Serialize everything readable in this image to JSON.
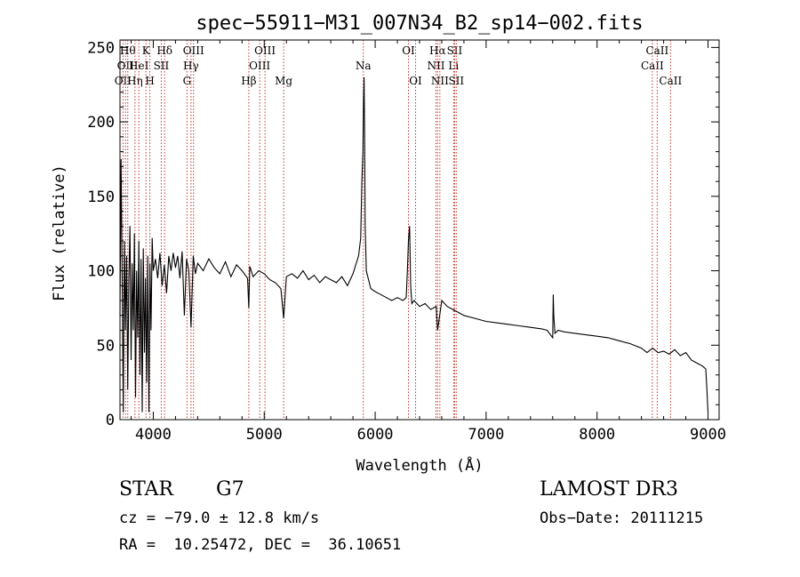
{
  "chart_data": {
    "type": "line",
    "title": "spec−55911−M31_007N34_B2_sp14−002.fits",
    "xlabel": "Wavelength (Å)",
    "ylabel": "Flux (relative)",
    "xlim": [
      3700,
      9100
    ],
    "ylim": [
      0,
      255
    ],
    "xticks": [
      4000,
      5000,
      6000,
      7000,
      8000,
      9000
    ],
    "yticks": [
      0,
      50,
      100,
      150,
      200,
      250
    ],
    "series": [
      {
        "name": "spectrum",
        "x": [
          3700,
          3710,
          3720,
          3730,
          3740,
          3750,
          3760,
          3770,
          3780,
          3790,
          3800,
          3810,
          3820,
          3830,
          3840,
          3850,
          3860,
          3870,
          3880,
          3890,
          3900,
          3910,
          3920,
          3930,
          3940,
          3950,
          3960,
          3970,
          3980,
          3990,
          4000,
          4020,
          4040,
          4060,
          4080,
          4100,
          4120,
          4140,
          4160,
          4180,
          4200,
          4220,
          4240,
          4260,
          4280,
          4300,
          4320,
          4340,
          4360,
          4380,
          4400,
          4450,
          4500,
          4550,
          4600,
          4650,
          4700,
          4750,
          4800,
          4850,
          4861,
          4870,
          4900,
          4950,
          5000,
          5050,
          5100,
          5150,
          5175,
          5200,
          5250,
          5300,
          5350,
          5400,
          5450,
          5500,
          5550,
          5600,
          5650,
          5700,
          5750,
          5800,
          5850,
          5870,
          5880,
          5890,
          5895,
          5900,
          5905,
          5910,
          5920,
          5940,
          5960,
          6000,
          6050,
          6100,
          6150,
          6200,
          6250,
          6280,
          6290,
          6300,
          6310,
          6320,
          6330,
          6350,
          6400,
          6450,
          6500,
          6550,
          6563,
          6600,
          6650,
          6700,
          6750,
          6800,
          6900,
          7000,
          7100,
          7200,
          7300,
          7400,
          7500,
          7550,
          7600,
          7605,
          7610,
          7620,
          7650,
          7700,
          7800,
          7900,
          8000,
          8100,
          8200,
          8300,
          8400,
          8450,
          8500,
          8550,
          8600,
          8650,
          8700,
          8750,
          8800,
          8850,
          8900,
          8950,
          8980,
          8990,
          9000
        ],
        "values": [
          70,
          175,
          90,
          5,
          120,
          60,
          110,
          20,
          95,
          130,
          40,
          105,
          60,
          125,
          15,
          100,
          55,
          120,
          30,
          108,
          5,
          115,
          45,
          95,
          25,
          110,
          5,
          105,
          60,
          122,
          100,
          108,
          95,
          112,
          90,
          104,
          85,
          110,
          100,
          112,
          102,
          110,
          95,
          113,
          70,
          108,
          100,
          62,
          110,
          98,
          105,
          100,
          108,
          102,
          98,
          106,
          96,
          104,
          100,
          95,
          75,
          103,
          96,
          100,
          98,
          94,
          92,
          88,
          68,
          96,
          98,
          95,
          100,
          94,
          97,
          92,
          96,
          94,
          92,
          96,
          90,
          98,
          110,
          122,
          160,
          180,
          215,
          230,
          190,
          130,
          100,
          94,
          88,
          86,
          84,
          82,
          80,
          82,
          80,
          82,
          100,
          120,
          130,
          90,
          78,
          80,
          76,
          78,
          74,
          76,
          60,
          80,
          76,
          74,
          72,
          70,
          68,
          66,
          65,
          64,
          63,
          62,
          61,
          60,
          55,
          84,
          70,
          58,
          60,
          59,
          58,
          57,
          56,
          55,
          53,
          51,
          48,
          45,
          48,
          45,
          46,
          44,
          47,
          43,
          45,
          40,
          38,
          36,
          34,
          20,
          5
        ]
      }
    ],
    "lines": [
      {
        "wl": 3727,
        "label": "OII",
        "row": 3
      },
      {
        "wl": 3750,
        "label": "OII",
        "row": 2
      },
      {
        "wl": 3770,
        "label": "Hθ",
        "row": 1
      },
      {
        "wl": 3835,
        "label": "Hη",
        "row": 3
      },
      {
        "wl": 3870,
        "label": "HeI",
        "row": 2
      },
      {
        "wl": 3934,
        "label": "K",
        "row": 1
      },
      {
        "wl": 3969,
        "label": "H",
        "row": 3
      },
      {
        "wl": 4072,
        "label": "SII",
        "row": 2
      },
      {
        "wl": 4102,
        "label": "Hδ",
        "row": 1
      },
      {
        "wl": 4304,
        "label": "G",
        "row": 3
      },
      {
        "wl": 4340,
        "label": "Hγ",
        "row": 2
      },
      {
        "wl": 4363,
        "label": "OIII",
        "row": 1
      },
      {
        "wl": 4861,
        "label": "Hβ",
        "row": 3
      },
      {
        "wl": 4959,
        "label": "OIII",
        "row": 2
      },
      {
        "wl": 5007,
        "label": "OIII",
        "row": 1
      },
      {
        "wl": 5175,
        "label": "Mg",
        "row": 3
      },
      {
        "wl": 5893,
        "label": "Na",
        "row": 2
      },
      {
        "wl": 6300,
        "label": "OI",
        "row": 1
      },
      {
        "wl": 6364,
        "label": "OI",
        "row": 3
      },
      {
        "wl": 6548,
        "label": "NII",
        "row": 2
      },
      {
        "wl": 6563,
        "label": "Hα",
        "row": 1
      },
      {
        "wl": 6583,
        "label": "NII",
        "row": 3
      },
      {
        "wl": 6707,
        "label": "Li",
        "row": 2
      },
      {
        "wl": 6716,
        "label": "SII",
        "row": 1
      },
      {
        "wl": 6731,
        "label": "SII",
        "row": 3
      },
      {
        "wl": 8498,
        "label": "CaII",
        "row": 2
      },
      {
        "wl": 8542,
        "label": "CaII",
        "row": 1
      },
      {
        "wl": 8662,
        "label": "CaII",
        "row": 3
      }
    ]
  },
  "info": {
    "classification": "STAR",
    "subclass": "G7",
    "survey": "LAMOST DR3",
    "cz": "cz = −79.0 ± 12.8 km/s",
    "obs_date": "Obs−Date: 20111215",
    "radec": "RA =  10.25472, DEC =  36.10651"
  }
}
